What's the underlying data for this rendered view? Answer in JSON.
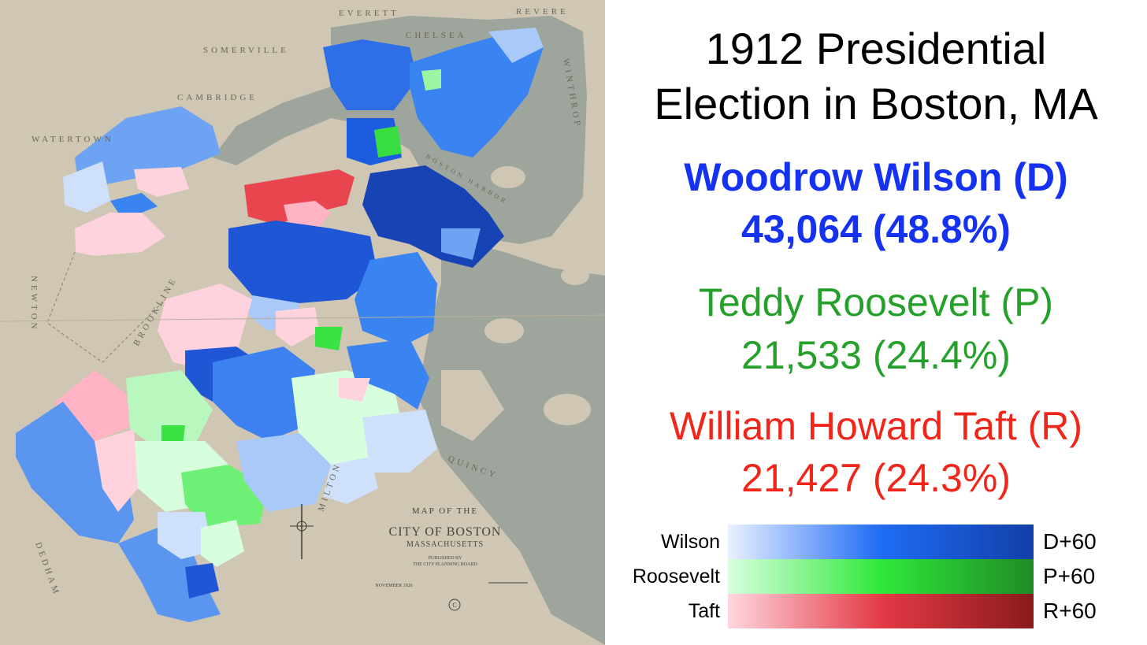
{
  "title": {
    "line1": "1912 Presidential",
    "line2": "Election in Boston, MA"
  },
  "candidates": [
    {
      "name": "Woodrow Wilson (D)",
      "result": "43,064 (48.8%)",
      "color": "#1432f0"
    },
    {
      "name": "Teddy Roosevelt (P)",
      "result": "21,533 (24.4%)",
      "color": "#25a12b"
    },
    {
      "name": "William Howard Taft (R)",
      "result": "21,427 (24.3%)",
      "color": "#f0261b"
    }
  ],
  "legend": [
    {
      "label": "Wilson",
      "max": "D+60",
      "gradient": [
        "#eaf1ff",
        "#1f6cf5",
        "#123fa8"
      ]
    },
    {
      "label": "Roosevelt",
      "max": "P+60",
      "gradient": [
        "#d9ffe0",
        "#30e83a",
        "#1f8c26"
      ]
    },
    {
      "label": "Taft",
      "max": "R+60",
      "gradient": [
        "#ffd6de",
        "#e33a46",
        "#8a1a1c"
      ]
    }
  ],
  "map": {
    "towns": {
      "everett": "EVERETT",
      "revere": "REVERE",
      "chelsea": "CHELSEA",
      "somerville": "SOMERVILLE",
      "cambridge": "CAMBRIDGE",
      "watertown": "WATERTOWN",
      "winthrop": "WINTHROP",
      "brookline": "BROOKLINE",
      "newton": "NEWTON",
      "quincy": "QUINCY",
      "milton": "MILTON",
      "dedham": "DEDHAM",
      "boston_harbor": "BOSTON HARBOR"
    },
    "cartouche": {
      "line1": "MAP OF THE",
      "line2": "CITY OF BOSTON",
      "line3": "MASSACHUSETTS",
      "line4": "PUBLISHED BY",
      "line5": "THE CITY PLANNING BOARD",
      "date": "NOVEMBER 1926"
    },
    "colors": {
      "paper": "#cfc6b4",
      "water": "#9ea59d",
      "wilson_light": "#cfe0fb",
      "wilson_mid": "#3d82f0",
      "wilson_dark": "#1743b4",
      "roosevelt_light": "#d8ffdd",
      "roosevelt_mid": "#7cf283",
      "roosevelt_dark": "#3be244",
      "taft_light": "#ffd3dd",
      "taft_dark": "#e8454f"
    }
  }
}
